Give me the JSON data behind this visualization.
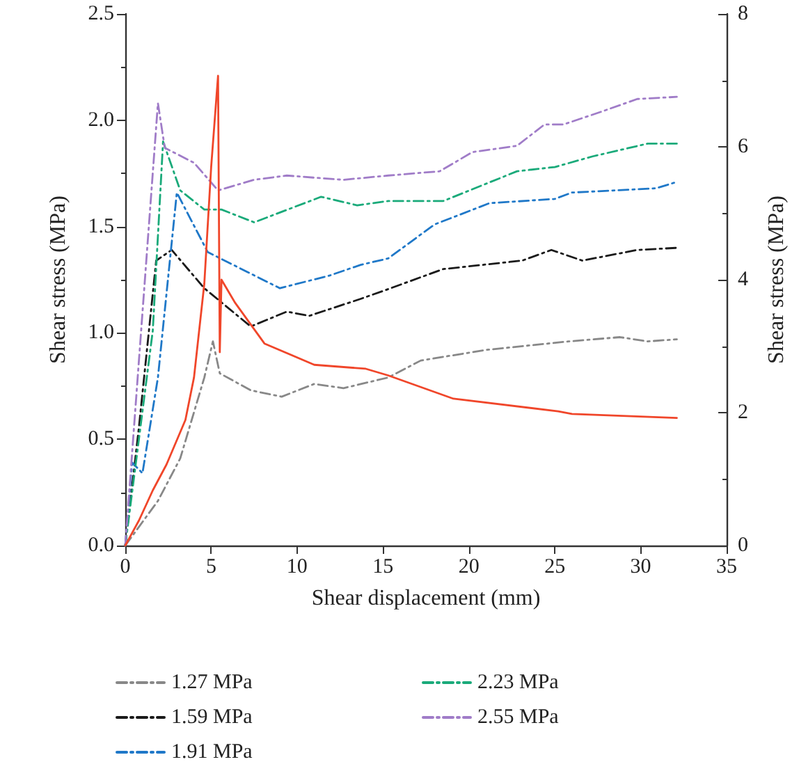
{
  "chart_data": {
    "type": "line",
    "xlabel": "Shear displacement (mm)",
    "ylabel": "Shear stress (MPa)",
    "y2label": "Shear stress (MPa)",
    "xlim": [
      0,
      35
    ],
    "xticks": [
      0,
      5,
      10,
      15,
      20,
      25,
      30,
      35
    ],
    "ylim": [
      0,
      2.5
    ],
    "yticks": [
      {
        "value": 0,
        "label": "0.0"
      },
      {
        "value": 0.5,
        "label": "0.5"
      },
      {
        "value": 1,
        "label": "1.0"
      },
      {
        "value": 1.5,
        "label": "1.5"
      },
      {
        "value": 2,
        "label": "2.0"
      },
      {
        "value": 2.5,
        "label": "2.5"
      }
    ],
    "y2lim": [
      0,
      8
    ],
    "y2ticks": [
      0,
      2,
      4,
      6,
      8
    ],
    "grid": false,
    "legend": "bottom",
    "marker": "none",
    "series": [
      {
        "name": "1.27 MPa",
        "color": "#888888",
        "line_style": "dashdot",
        "x": [
          0,
          1.9,
          3.2,
          4.6,
          5.1,
          5.5,
          7.3,
          9.1,
          11,
          12.7,
          15.3,
          17.2,
          21,
          25.8,
          28.8,
          30.4,
          32.1
        ],
        "values": [
          0,
          0.21,
          0.41,
          0.79,
          0.96,
          0.81,
          0.73,
          0.7,
          0.76,
          0.74,
          0.79,
          0.87,
          0.92,
          0.96,
          0.98,
          0.96,
          0.97
        ]
      },
      {
        "name": "1.59 MPa",
        "color": "#1a1a1a",
        "line_style": "dashdot",
        "x": [
          0,
          0.8,
          1.8,
          2.7,
          4.6,
          7.3,
          9.4,
          10.7,
          13.7,
          15.1,
          18.5,
          23.1,
          24.8,
          26.6,
          29.8,
          32.1
        ],
        "values": [
          0,
          0.56,
          1.34,
          1.39,
          1.21,
          1.03,
          1.1,
          1.08,
          1.16,
          1.2,
          1.3,
          1.34,
          1.39,
          1.34,
          1.39,
          1.4
        ]
      },
      {
        "name": "1.91 MPa",
        "color": "#1f78c8",
        "line_style": "dashdot",
        "x": [
          0,
          0.4,
          1.0,
          1.9,
          3.0,
          4.8,
          9.0,
          11.9,
          13.7,
          15.3,
          18,
          21.2,
          25,
          26,
          30.9,
          32.1
        ],
        "values": [
          0,
          0.39,
          0.34,
          0.79,
          1.66,
          1.38,
          1.21,
          1.27,
          1.32,
          1.35,
          1.51,
          1.61,
          1.63,
          1.66,
          1.68,
          1.71
        ]
      },
      {
        "name": "2.23 MPa",
        "color": "#1aaa7a",
        "line_style": "dashdot",
        "x": [
          0,
          1.6,
          2.2,
          3.2,
          4.6,
          5.6,
          7.5,
          11.4,
          13.5,
          15.3,
          18.5,
          22.8,
          25,
          27.2,
          30.4,
          32.1
        ],
        "values": [
          0,
          1.01,
          1.9,
          1.67,
          1.58,
          1.58,
          1.52,
          1.64,
          1.6,
          1.62,
          1.62,
          1.76,
          1.78,
          1.83,
          1.89,
          1.89
        ]
      },
      {
        "name": "2.55 MPa",
        "color": "#a07cc8",
        "line_style": "dashdot",
        "x": [
          0,
          1.9,
          2.3,
          4.0,
          5.4,
          7.5,
          9.4,
          11,
          12.7,
          15.3,
          18.3,
          20.2,
          22.8,
          24.4,
          25.5,
          27.7,
          29.8,
          32.1
        ],
        "values": [
          0,
          2.08,
          1.87,
          1.8,
          1.67,
          1.72,
          1.74,
          1.73,
          1.72,
          1.74,
          1.76,
          1.85,
          1.88,
          1.98,
          1.98,
          2.04,
          2.1,
          2.11
        ]
      },
      {
        "color": "#f0462a",
        "line_style": "solid",
        "axis": "y2",
        "x": [
          0,
          0.8,
          1.6,
          2.4,
          3.5,
          4.0,
          4.6,
          5.0,
          5.4,
          5.5,
          5.6,
          6.4,
          8.1,
          11.0,
          14.0,
          15.3,
          19.1,
          25.2,
          26.0,
          32.1
        ],
        "values": [
          0,
          0.38,
          0.83,
          1.22,
          1.89,
          2.53,
          3.94,
          5.7,
          7.07,
          2.91,
          4.0,
          3.65,
          3.04,
          2.72,
          2.66,
          2.56,
          2.21,
          2.02,
          1.98,
          1.92
        ]
      }
    ]
  }
}
